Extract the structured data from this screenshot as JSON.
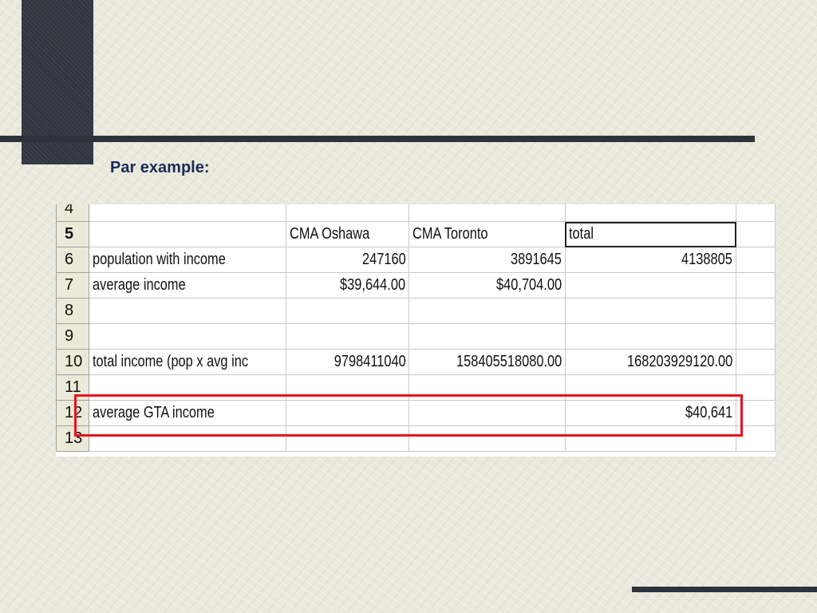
{
  "slide": {
    "title": "Par example:"
  },
  "spreadsheet": {
    "active_cell_row": "5",
    "rows": [
      {
        "row": "4",
        "cells": [
          "",
          "",
          "",
          "",
          ""
        ]
      },
      {
        "row": "5",
        "cells": [
          "",
          "CMA Oshawa",
          "CMA Toronto",
          "total",
          ""
        ]
      },
      {
        "row": "6",
        "cells": [
          "population with income",
          "247160",
          "3891645",
          "4138805",
          ""
        ]
      },
      {
        "row": "7",
        "cells": [
          "average income",
          "$39,644.00",
          "$40,704.00",
          "",
          ""
        ]
      },
      {
        "row": "8",
        "cells": [
          "",
          "",
          "",
          "",
          ""
        ]
      },
      {
        "row": "9",
        "cells": [
          "",
          "",
          "",
          "",
          ""
        ]
      },
      {
        "row": "10",
        "cells": [
          "total income (pop x avg inc",
          "9798411040",
          "158405518080.00",
          "168203929120.00",
          ""
        ]
      },
      {
        "row": "11",
        "cells": [
          "",
          "",
          "",
          "",
          ""
        ]
      },
      {
        "row": "12",
        "cells": [
          "average GTA income",
          "",
          "",
          "$40,641",
          ""
        ]
      },
      {
        "row": "13",
        "cells": [
          "",
          "",
          "",
          "",
          ""
        ]
      }
    ]
  },
  "colors": {
    "highlight": "#e8121a",
    "title": "#1c2a5a"
  }
}
